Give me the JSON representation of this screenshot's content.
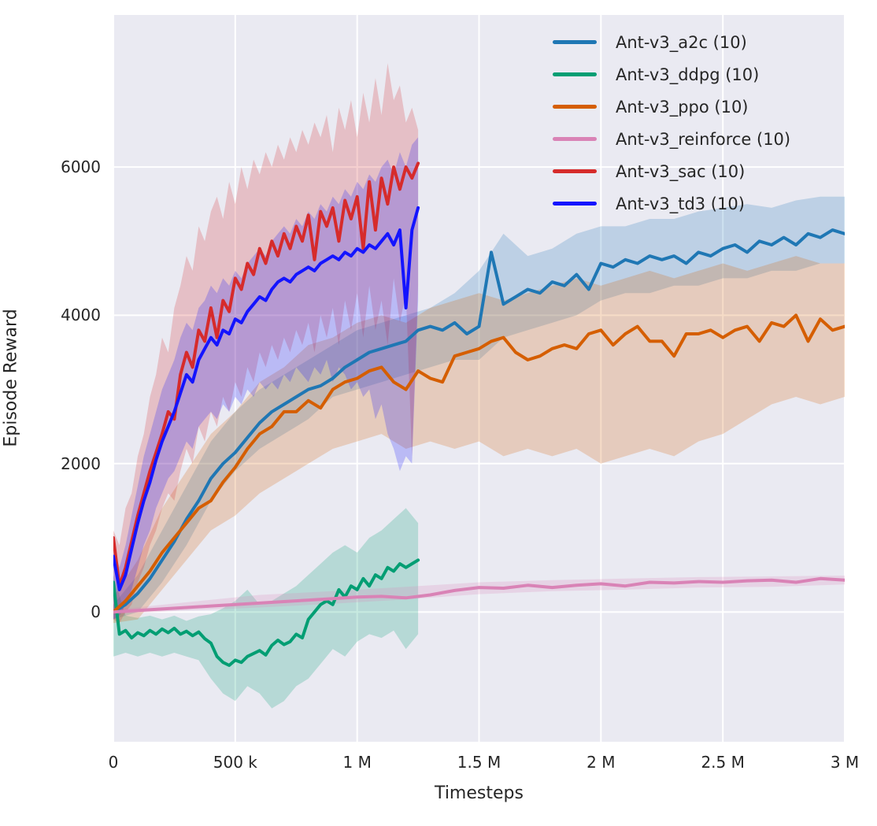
{
  "figure": {
    "background": "#ffffff",
    "axes_background": "#eaeaf2",
    "grid_color": "#ffffff",
    "text_color": "#262626"
  },
  "chart_data": {
    "type": "line",
    "title": "",
    "xlabel": "Timesteps",
    "ylabel": "Episode Reward",
    "grid": true,
    "legend_position": "upper right",
    "xlim": [
      0,
      3000000
    ],
    "ylim": [
      -1750,
      8050
    ],
    "x_ticks": [
      {
        "value": 0,
        "label": "0"
      },
      {
        "value": 500000,
        "label": "500 k"
      },
      {
        "value": 1000000,
        "label": "1 M"
      },
      {
        "value": 1500000,
        "label": "1.5 M"
      },
      {
        "value": 2000000,
        "label": "2 M"
      },
      {
        "value": 2500000,
        "label": "2.5 M"
      },
      {
        "value": 3000000,
        "label": "3 M"
      }
    ],
    "y_ticks": [
      {
        "value": 0,
        "label": "0"
      },
      {
        "value": 2000,
        "label": "2000"
      },
      {
        "value": 4000,
        "label": "4000"
      },
      {
        "value": 6000,
        "label": "6000"
      }
    ],
    "series": [
      {
        "id": "a2c",
        "name": "Ant-v3_a2c (10)",
        "color": "#1f77b4",
        "x0": 0,
        "dx": 50000,
        "y": [
          0,
          100,
          250,
          450,
          700,
          950,
          1250,
          1500,
          1800,
          2000,
          2150,
          2350,
          2550,
          2700,
          2800,
          2900,
          3000,
          3050,
          3150,
          3300,
          3400,
          3500,
          3550,
          3600,
          3650,
          3800,
          3850,
          3800,
          3900,
          3750,
          3850,
          4850,
          4150,
          4250,
          4350,
          4300,
          4450,
          4400,
          4550,
          4350,
          4700,
          4650,
          4750,
          4700,
          4800,
          4750,
          4800,
          4700,
          4850,
          4800,
          4900,
          4950,
          4850,
          5000,
          4950,
          5050,
          4950,
          5100,
          5050,
          5150,
          5100
        ],
        "band": {
          "dx": 100000,
          "hi": [
            100,
            500,
            1100,
            1700,
            2300,
            2700,
            3000,
            3200,
            3400,
            3600,
            3800,
            3900,
            4000,
            4100,
            4300,
            4600,
            5100,
            4800,
            4900,
            5100,
            5200,
            5200,
            5300,
            5300,
            5400,
            5450,
            5500,
            5450,
            5550,
            5600,
            5600
          ],
          "lo": [
            -100,
            0,
            400,
            900,
            1500,
            1900,
            2200,
            2400,
            2600,
            2900,
            3000,
            3100,
            3200,
            3300,
            3400,
            3400,
            3700,
            3800,
            3900,
            4000,
            4200,
            4300,
            4300,
            4400,
            4400,
            4500,
            4500,
            4600,
            4600,
            4700,
            4700
          ]
        }
      },
      {
        "id": "ddpg",
        "name": "Ant-v3_ddpg (10)",
        "color": "#029e73",
        "x0": 0,
        "dx": 25000,
        "y": [
          400,
          -300,
          -250,
          -350,
          -280,
          -320,
          -250,
          -300,
          -230,
          -280,
          -220,
          -300,
          -260,
          -320,
          -270,
          -360,
          -420,
          -600,
          -680,
          -720,
          -650,
          -680,
          -600,
          -560,
          -520,
          -580,
          -450,
          -380,
          -440,
          -400,
          -300,
          -350,
          -100,
          0,
          100,
          150,
          100,
          300,
          200,
          350,
          300,
          450,
          350,
          500,
          450,
          600,
          550,
          650,
          600,
          650,
          700
        ],
        "band": {
          "dx": 50000,
          "hi": [
            500,
            -50,
            -80,
            -50,
            -100,
            -50,
            -120,
            -60,
            -30,
            50,
            150,
            300,
            100,
            150,
            250,
            350,
            500,
            650,
            800,
            900,
            800,
            1000,
            1100,
            1250,
            1400,
            1200
          ],
          "lo": [
            -600,
            -550,
            -600,
            -550,
            -600,
            -550,
            -600,
            -650,
            -900,
            -1100,
            -1200,
            -1000,
            -1100,
            -1300,
            -1200,
            -1000,
            -900,
            -700,
            -500,
            -600,
            -400,
            -300,
            -350,
            -250,
            -500,
            -300
          ]
        }
      },
      {
        "id": "ppo",
        "name": "Ant-v3_ppo (10)",
        "color": "#d55e00",
        "x0": 0,
        "dx": 50000,
        "y": [
          0,
          150,
          350,
          550,
          800,
          1000,
          1200,
          1400,
          1500,
          1750,
          1950,
          2200,
          2400,
          2500,
          2700,
          2700,
          2850,
          2750,
          3000,
          3100,
          3150,
          3250,
          3300,
          3100,
          3000,
          3250,
          3150,
          3100,
          3450,
          3500,
          3550,
          3650,
          3700,
          3500,
          3400,
          3450,
          3550,
          3600,
          3550,
          3750,
          3800,
          3600,
          3750,
          3850,
          3650,
          3650,
          3450,
          3750,
          3750,
          3800,
          3700,
          3800,
          3850,
          3650,
          3900,
          3850,
          4000,
          3650,
          3950,
          3800,
          3850
        ],
        "band": {
          "dx": 100000,
          "hi": [
            200,
            700,
            1400,
            1900,
            2400,
            2700,
            3100,
            3300,
            3600,
            3700,
            3900,
            4000,
            3900,
            4100,
            4200,
            4300,
            4200,
            4300,
            4400,
            4500,
            4400,
            4500,
            4600,
            4500,
            4600,
            4700,
            4600,
            4700,
            4800,
            4700,
            4700
          ],
          "lo": [
            -150,
            -100,
            300,
            700,
            1100,
            1300,
            1600,
            1800,
            2000,
            2200,
            2300,
            2400,
            2200,
            2300,
            2200,
            2300,
            2100,
            2200,
            2100,
            2200,
            2000,
            2100,
            2200,
            2100,
            2300,
            2400,
            2600,
            2800,
            2900,
            2800,
            2900
          ]
        }
      },
      {
        "id": "reinforce",
        "name": "Ant-v3_reinforce (10)",
        "color": "#d983b6",
        "x0": 0,
        "dx": 100000,
        "y": [
          0,
          20,
          40,
          60,
          80,
          100,
          120,
          140,
          160,
          180,
          200,
          210,
          190,
          230,
          290,
          330,
          320,
          360,
          330,
          360,
          380,
          350,
          400,
          390,
          410,
          400,
          420,
          430,
          400,
          450,
          430
        ],
        "band": {
          "dx": 300000,
          "hi": [
            30,
            130,
            230,
            280,
            340,
            400,
            430,
            450,
            470,
            480,
            490
          ],
          "lo": [
            -30,
            20,
            60,
            110,
            170,
            240,
            280,
            300,
            330,
            340,
            370
          ]
        }
      },
      {
        "id": "sac",
        "name": "Ant-v3_sac (10)",
        "color": "#d62b2b",
        "x0": 0,
        "dx": 25000,
        "y": [
          1000,
          350,
          600,
          950,
          1300,
          1600,
          1900,
          2150,
          2400,
          2700,
          2600,
          3200,
          3500,
          3300,
          3800,
          3650,
          4100,
          3700,
          4200,
          4050,
          4500,
          4350,
          4700,
          4550,
          4900,
          4700,
          5000,
          4800,
          5100,
          4900,
          5200,
          5000,
          5350,
          4750,
          5400,
          5200,
          5450,
          5000,
          5550,
          5300,
          5600,
          4900,
          5800,
          5150,
          5850,
          5500,
          6000,
          5700,
          6000,
          5850,
          6050
        ],
        "band": {
          "dx": 25000,
          "hi": [
            1100,
            900,
            1400,
            1600,
            2100,
            2400,
            2900,
            3200,
            3700,
            3500,
            4100,
            4400,
            4800,
            4600,
            5200,
            5000,
            5400,
            5600,
            5300,
            5800,
            5500,
            6000,
            5700,
            6100,
            5900,
            6200,
            6000,
            6300,
            6100,
            6400,
            6200,
            6500,
            6300,
            6600,
            6400,
            6700,
            6200,
            6800,
            6500,
            6900,
            6400,
            7000,
            6600,
            7200,
            6700,
            7400,
            6900,
            7100,
            6600,
            6800,
            6500
          ],
          "lo": [
            -100,
            -150,
            0,
            100,
            400,
            600,
            900,
            1100,
            1400,
            1600,
            1500,
            1900,
            2200,
            2000,
            2500,
            2300,
            2700,
            2500,
            2900,
            2700,
            3100,
            2900,
            3300,
            3100,
            3500,
            3300,
            3600,
            3400,
            3700,
            3500,
            3800,
            3600,
            3900,
            3500,
            4000,
            3700,
            4100,
            3600,
            4200,
            3800,
            4300,
            3700,
            4400,
            3800,
            4200,
            3600,
            4500,
            3900,
            4300,
            2100,
            4400
          ]
        }
      },
      {
        "id": "td3",
        "name": "Ant-v3_td3 (10)",
        "color": "#1414ff",
        "x0": 0,
        "dx": 25000,
        "y": [
          750,
          300,
          500,
          850,
          1200,
          1500,
          1750,
          2050,
          2300,
          2500,
          2700,
          2950,
          3200,
          3100,
          3400,
          3550,
          3700,
          3600,
          3800,
          3750,
          3950,
          3900,
          4050,
          4150,
          4250,
          4200,
          4350,
          4450,
          4500,
          4450,
          4550,
          4600,
          4650,
          4600,
          4700,
          4750,
          4800,
          4750,
          4850,
          4800,
          4900,
          4850,
          4950,
          4900,
          5000,
          5100,
          4950,
          5150,
          4100,
          5150,
          5450
        ],
        "band": {
          "dx": 25000,
          "hi": [
            900,
            600,
            900,
            1300,
            1700,
            2100,
            2400,
            2700,
            3000,
            3200,
            3400,
            3700,
            3900,
            3800,
            4100,
            4200,
            4400,
            4300,
            4500,
            4400,
            4600,
            4500,
            4700,
            4800,
            4900,
            4800,
            5000,
            5100,
            5200,
            5100,
            5300,
            5200,
            5400,
            5300,
            5500,
            5400,
            5600,
            5500,
            5700,
            5600,
            5800,
            5700,
            5900,
            5800,
            6000,
            6100,
            5900,
            6200,
            6000,
            6300,
            6400
          ],
          "lo": [
            -100,
            -50,
            100,
            300,
            600,
            900,
            1100,
            1400,
            1600,
            1800,
            1900,
            2100,
            2300,
            2200,
            2500,
            2600,
            2700,
            2600,
            2800,
            2700,
            2900,
            2800,
            3000,
            2900,
            3100,
            3000,
            3100,
            3000,
            3200,
            3100,
            3300,
            3200,
            3100,
            3300,
            3200,
            3400,
            3100,
            3300,
            3200,
            3000,
            3100,
            2900,
            3000,
            2600,
            2800,
            2400,
            2200,
            1900,
            2100,
            2000,
            4200
          ]
        }
      }
    ]
  }
}
